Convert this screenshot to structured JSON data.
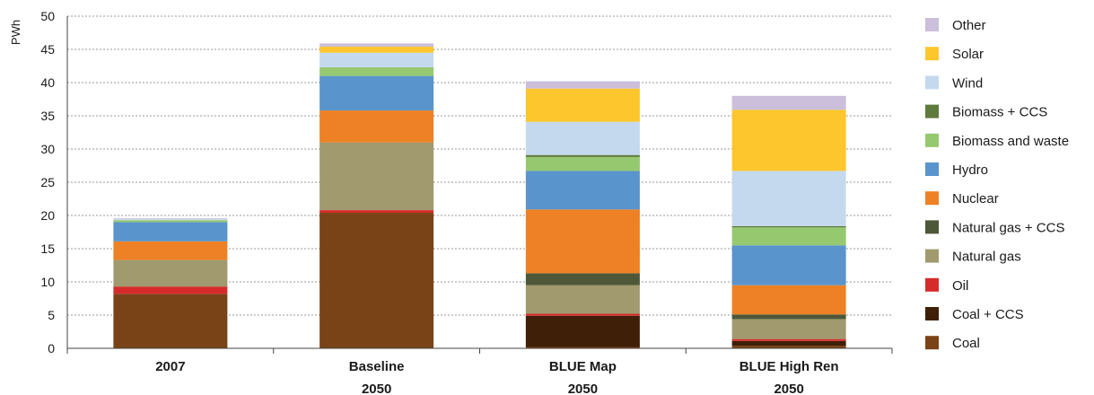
{
  "chart_data": {
    "type": "bar",
    "stacked": true,
    "ylabel": "PWh",
    "ylim": [
      0,
      50
    ],
    "yticks": [
      "0",
      "5",
      "10",
      "15",
      "20",
      "25",
      "30",
      "35",
      "40",
      "45",
      "50"
    ],
    "grid": true,
    "legend_position": "right",
    "categories": [
      {
        "line1": "2007",
        "line2": ""
      },
      {
        "line1": "Baseline",
        "line2": "2050"
      },
      {
        "line1": "BLUE Map",
        "line2": "2050"
      },
      {
        "line1": "BLUE High Ren",
        "line2": "2050"
      }
    ],
    "series": [
      {
        "name": "Coal",
        "color": "#7a4317",
        "values": [
          8.2,
          20.4,
          0.2,
          0.4
        ]
      },
      {
        "name": "Coal + CCS",
        "color": "#3f1f08",
        "values": [
          0,
          0,
          4.7,
          0.7
        ]
      },
      {
        "name": "Oil",
        "color": "#d62b2b",
        "values": [
          1.1,
          0.4,
          0.3,
          0.3
        ]
      },
      {
        "name": "Natural gas",
        "color": "#a09a6e",
        "values": [
          4.0,
          10.2,
          4.3,
          3.0
        ]
      },
      {
        "name": "Natural gas + CCS",
        "color": "#4e5738",
        "values": [
          0,
          0,
          1.8,
          0.7
        ]
      },
      {
        "name": "Nuclear",
        "color": "#ee8125",
        "values": [
          2.8,
          4.8,
          9.6,
          4.4
        ]
      },
      {
        "name": "Hydro",
        "color": "#5a94cc",
        "values": [
          2.9,
          5.2,
          5.8,
          6.0
        ]
      },
      {
        "name": "Biomass and waste",
        "color": "#96c870",
        "values": [
          0.3,
          1.3,
          2.1,
          2.7
        ]
      },
      {
        "name": "Biomass + CCS",
        "color": "#5f7a3c",
        "values": [
          0,
          0,
          0.3,
          0.2
        ]
      },
      {
        "name": "Wind",
        "color": "#c5d9ee",
        "values": [
          0.2,
          2.2,
          5.0,
          8.3
        ]
      },
      {
        "name": "Solar",
        "color": "#fcc62c",
        "values": [
          0,
          0.9,
          5.0,
          9.2
        ]
      },
      {
        "name": "Other",
        "color": "#cbbfdb",
        "values": [
          0.1,
          0.5,
          1.1,
          2.1
        ]
      }
    ]
  }
}
